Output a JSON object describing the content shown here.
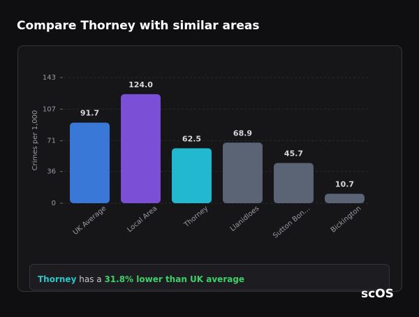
{
  "chart_data": {
    "type": "bar",
    "title": "Compare Thorney with similar areas",
    "y_label": "Crimes per 1,000",
    "categories": [
      "UK Average",
      "Local Area",
      "Thorney",
      "Llanidloes",
      "Sutton Bon…",
      "Bickington"
    ],
    "values": [
      91.7,
      124.0,
      62.5,
      68.9,
      45.7,
      10.7
    ],
    "value_labels": [
      "91.7",
      "124.0",
      "62.5",
      "68.9",
      "45.7",
      "10.7"
    ],
    "colors": [
      "#3a78d8",
      "#7b4fd6",
      "#22b8cf",
      "#5b6475",
      "#5b6475",
      "#5b6475"
    ],
    "ylim": [
      0,
      143
    ],
    "yticks": [
      0,
      36,
      71,
      107,
      143
    ],
    "grid": true
  },
  "summary": {
    "place": "Thorney",
    "text": "has a",
    "highlight": "31.8% lower than UK average"
  },
  "brand": "scOS"
}
